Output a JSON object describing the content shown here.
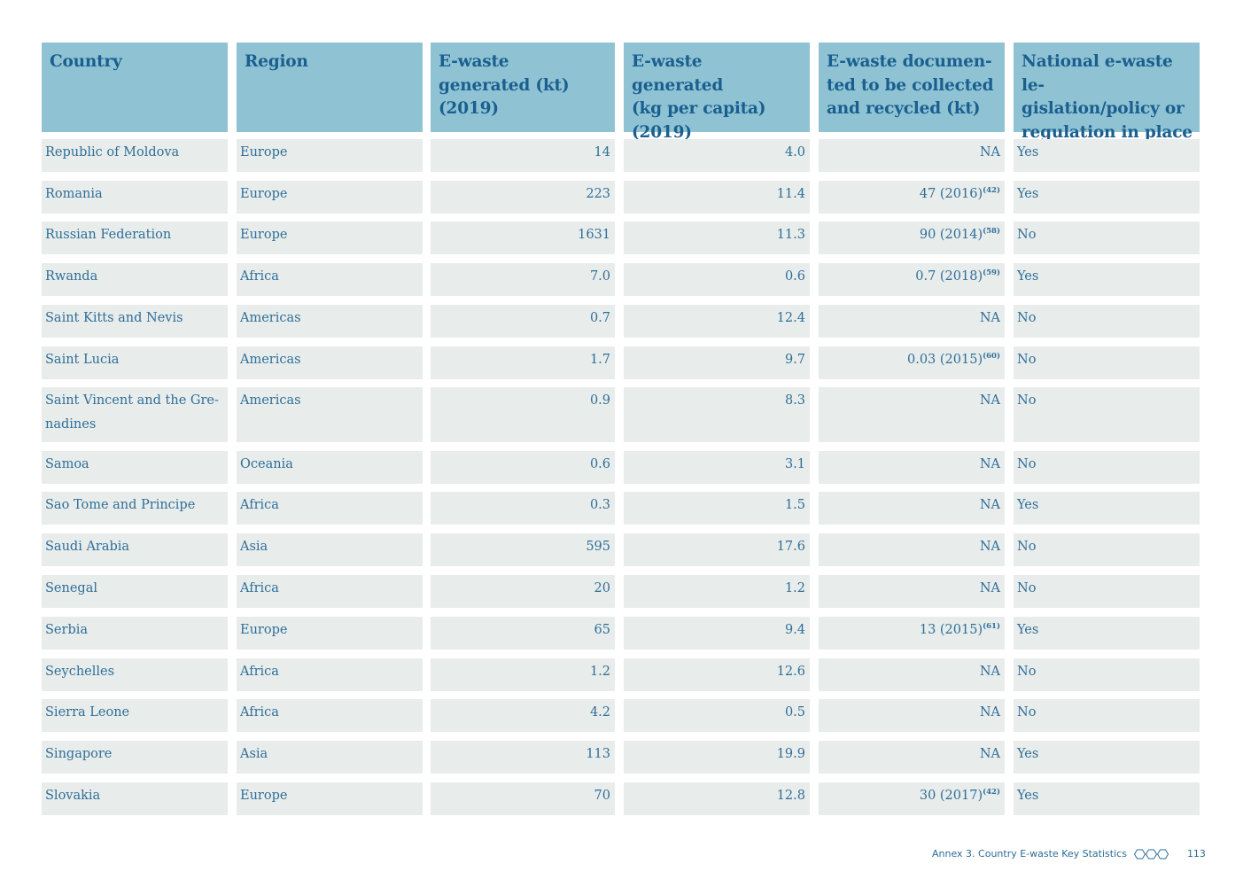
{
  "headers": [
    "Country",
    "Region",
    "E-waste\ngenerated (kt)\n(2019)",
    "E-waste\ngenerated\n(kg per capita) (2019)",
    "E-waste documen-\nted to be collected\nand recycled (kt)",
    "National e-waste le-\ngislation/policy or\nregulation in place"
  ],
  "rows": [
    {
      "country": "Republic of Moldova",
      "region": "Europe",
      "kt": "14",
      "per_capita": "4.0",
      "collected": "NA",
      "collected_ref": "",
      "legislation": "Yes"
    },
    {
      "country": "Romania",
      "region": "Europe",
      "kt": "223",
      "per_capita": "11.4",
      "collected": "47 (2016)",
      "collected_ref": "(42)",
      "legislation": "Yes"
    },
    {
      "country": "Russian Federation",
      "region": "Europe",
      "kt": "1631",
      "per_capita": "11.3",
      "collected": "90 (2014)",
      "collected_ref": "(58)",
      "legislation": "No"
    },
    {
      "country": "Rwanda",
      "region": "Africa",
      "kt": "7.0",
      "per_capita": "0.6",
      "collected": "0.7 (2018)",
      "collected_ref": "(59)",
      "legislation": "Yes"
    },
    {
      "country": "Saint Kitts and Nevis",
      "region": "Americas",
      "kt": "0.7",
      "per_capita": "12.4",
      "collected": "NA",
      "collected_ref": "",
      "legislation": "No"
    },
    {
      "country": "Saint Lucia",
      "region": "Americas",
      "kt": "1.7",
      "per_capita": "9.7",
      "collected": "0.03 (2015)",
      "collected_ref": "(60)",
      "legislation": "No"
    },
    {
      "country": "Saint Vincent and the Gre-\nnadines",
      "region": "Americas",
      "kt": "0.9",
      "per_capita": "8.3",
      "collected": "NA",
      "collected_ref": "",
      "legislation": "No"
    },
    {
      "country": "Samoa",
      "region": "Oceania",
      "kt": "0.6",
      "per_capita": "3.1",
      "collected": "NA",
      "collected_ref": "",
      "legislation": "No"
    },
    {
      "country": "Sao Tome and Principe",
      "region": "Africa",
      "kt": "0.3",
      "per_capita": "1.5",
      "collected": "NA",
      "collected_ref": "",
      "legislation": "Yes"
    },
    {
      "country": "Saudi Arabia",
      "region": "Asia",
      "kt": "595",
      "per_capita": "17.6",
      "collected": "NA",
      "collected_ref": "",
      "legislation": "No"
    },
    {
      "country": "Senegal",
      "region": "Africa",
      "kt": "20",
      "per_capita": "1.2",
      "collected": "NA",
      "collected_ref": "",
      "legislation": "No"
    },
    {
      "country": "Serbia",
      "region": "Europe",
      "kt": "65",
      "per_capita": "9.4",
      "collected": "13 (2015)",
      "collected_ref": "(61)",
      "legislation": "Yes"
    },
    {
      "country": "Seychelles",
      "region": "Africa",
      "kt": "1.2",
      "per_capita": "12.6",
      "collected": "NA",
      "collected_ref": "",
      "legislation": "No"
    },
    {
      "country": "Sierra Leone",
      "region": "Africa",
      "kt": "4.2",
      "per_capita": "0.5",
      "collected": "NA",
      "collected_ref": "",
      "legislation": "No"
    },
    {
      "country": "Singapore",
      "region": "Asia",
      "kt": "113",
      "per_capita": "19.9",
      "collected": "NA",
      "collected_ref": "",
      "legislation": "Yes"
    },
    {
      "country": "Slovakia",
      "region": "Europe",
      "kt": "70",
      "per_capita": "12.8",
      "collected": "30 (2017)",
      "collected_ref": "(42)",
      "legislation": "Yes"
    }
  ],
  "footer": {
    "text": "Annex 3. Country E-waste Key Statistics",
    "page": "113"
  },
  "colors": {
    "header_bg": "#8fc3d4",
    "header_text": "#1a5f8f",
    "row_bg": "#e8eceb",
    "body_text": "#2f6f99"
  }
}
